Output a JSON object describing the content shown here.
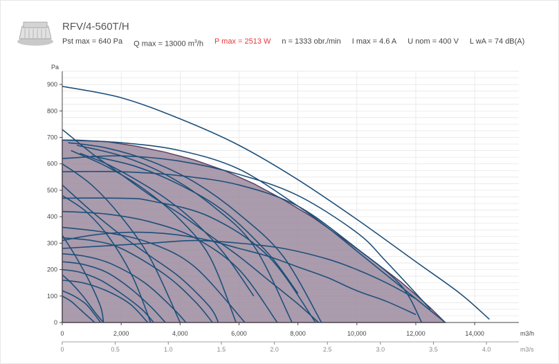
{
  "product": {
    "title": "RFV/4-560T/H",
    "logo_icon": "roof-fan-icon"
  },
  "specs": {
    "pst_max": "Pst max = 640 Pa",
    "q_max_prefix": "Q max = 13000 m",
    "q_max_sup": "3",
    "q_max_suffix": "/h",
    "p_max": "P max = 2513 W",
    "n": "n = 1333 obr./min",
    "i_max": "I max = 4.6 A",
    "u_nom": "U nom = 400 V",
    "lwa": "L wA = 74 dB(A)",
    "p_max_color": "#e8373c"
  },
  "chart_data": {
    "type": "line",
    "ylabel": "Pa",
    "xlabel_primary": "m3/h",
    "xlabel_secondary": "m3/s",
    "xlim": [
      0,
      15500
    ],
    "ylim": [
      0,
      950
    ],
    "y_ticks": [
      0,
      100,
      200,
      300,
      400,
      500,
      600,
      700,
      800,
      900
    ],
    "x_ticks": [
      0,
      2000,
      4000,
      6000,
      8000,
      10000,
      12000,
      14000
    ],
    "x_tick_labels": [
      "0",
      "2,000",
      "4,000",
      "6,000",
      "8,000",
      "10,000",
      "12,000",
      "14,000"
    ],
    "x2_ticks": [
      0,
      0.5,
      1.0,
      1.5,
      2.0,
      2.5,
      3.0,
      3.5,
      4.0
    ],
    "x2_tick_labels": [
      "0",
      "0.5",
      "1.0",
      "1.5",
      "2.0",
      "2.5",
      "3.0",
      "3.5",
      "4.0"
    ],
    "grid": true,
    "area_color": "#9b8a9f",
    "line_color": "#1d4f79",
    "area_edge_color": "#5e3f62",
    "working_area": {
      "x": [
        0,
        500,
        1500,
        2500,
        3500,
        4500,
        5500,
        6500,
        7500,
        8500,
        9500,
        10500,
        11500,
        12000,
        12500,
        13000
      ],
      "y": [
        690,
        690,
        684,
        667,
        644,
        614,
        575,
        525,
        465,
        398,
        320,
        238,
        153,
        105,
        55,
        0
      ]
    },
    "series": [
      {
        "x": [
          0,
          2000,
          4000,
          6000,
          8000,
          10000,
          12000,
          13500,
          14500
        ],
        "y": [
          893,
          850,
          770,
          670,
          540,
          390,
          230,
          110,
          12
        ]
      },
      {
        "x": [
          0,
          2000,
          4000,
          6000,
          8000,
          9000,
          10000,
          11000,
          12000,
          13000
        ],
        "y": [
          690,
          680,
          650,
          580,
          440,
          360,
          270,
          180,
          90,
          0
        ]
      },
      {
        "x": [
          0,
          2000,
          4000,
          6000,
          8000,
          10000,
          11500,
          12200
        ],
        "y": [
          570,
          570,
          555,
          520,
          440,
          280,
          140,
          0
        ]
      },
      {
        "x": [
          0,
          1000,
          2000,
          3000,
          4000,
          5000,
          6000,
          7000,
          8000,
          8700
        ],
        "y": [
          730,
          640,
          560,
          480,
          410,
          330,
          250,
          160,
          70,
          0
        ]
      },
      {
        "x": [
          0,
          2000,
          3000,
          5000,
          7000,
          8600
        ],
        "y": [
          470,
          470,
          460,
          400,
          250,
          0
        ]
      },
      {
        "x": [
          0,
          1500,
          3000,
          4500,
          6000,
          7300
        ],
        "y": [
          420,
          410,
          380,
          320,
          200,
          0
        ]
      },
      {
        "x": [
          0,
          1500,
          3000,
          4500,
          6200
        ],
        "y": [
          360,
          340,
          300,
          210,
          0
        ]
      },
      {
        "x": [
          0,
          1000,
          2000,
          3000,
          4000,
          5000,
          5300
        ],
        "y": [
          520,
          420,
          330,
          250,
          170,
          60,
          0
        ]
      },
      {
        "x": [
          0,
          1000,
          2000,
          3500,
          4500,
          5100
        ],
        "y": [
          320,
          310,
          280,
          180,
          80,
          0
        ]
      },
      {
        "x": [
          0,
          800,
          1700,
          2800,
          3700,
          4200
        ],
        "y": [
          260,
          250,
          220,
          150,
          60,
          0
        ]
      },
      {
        "x": [
          0,
          700,
          1500,
          2300,
          3000,
          3500
        ],
        "y": [
          230,
          220,
          190,
          130,
          60,
          0
        ]
      },
      {
        "x": [
          0,
          600,
          1300,
          2000,
          2700,
          3100
        ],
        "y": [
          200,
          190,
          160,
          110,
          50,
          0
        ]
      },
      {
        "x": [
          0,
          700,
          1500,
          2300,
          2900
        ],
        "y": [
          160,
          150,
          120,
          70,
          0
        ]
      },
      {
        "x": [
          0,
          400,
          900,
          1300,
          1400
        ],
        "y": [
          330,
          260,
          160,
          60,
          0
        ]
      },
      {
        "x": [
          0,
          300,
          700,
          1100,
          1400
        ],
        "y": [
          180,
          150,
          100,
          40,
          0
        ]
      },
      {
        "x": [
          0,
          400,
          800,
          1100,
          1300
        ],
        "y": [
          120,
          100,
          70,
          30,
          0
        ]
      },
      {
        "x": [
          0,
          300,
          600,
          900,
          1100
        ],
        "y": [
          100,
          80,
          50,
          20,
          0
        ]
      },
      {
        "x": [
          200,
          1500,
          3000,
          4500,
          6000,
          7500,
          8800
        ],
        "y": [
          680,
          660,
          610,
          530,
          410,
          250,
          0
        ]
      },
      {
        "x": [
          500,
          2000,
          3500,
          5000,
          6500,
          7800
        ],
        "y": [
          670,
          630,
          560,
          450,
          290,
          0
        ]
      },
      {
        "x": [
          300,
          1500,
          2700,
          3900,
          5000,
          5900
        ],
        "y": [
          650,
          590,
          510,
          400,
          250,
          0
        ]
      },
      {
        "x": [
          0,
          1000,
          2000,
          3000,
          4000
        ],
        "y": [
          600,
          520,
          400,
          240,
          0
        ]
      },
      {
        "x": [
          0,
          800,
          1600,
          2400,
          3000
        ],
        "y": [
          480,
          420,
          320,
          170,
          0
        ]
      },
      {
        "x": [
          0,
          1500,
          3000,
          4500,
          6000,
          7500,
          9000,
          10000,
          11000,
          12000
        ],
        "y": [
          280,
          290,
          300,
          310,
          300,
          280,
          240,
          200,
          150,
          90
        ]
      },
      {
        "x": [
          0,
          2000,
          4000,
          6000,
          8000,
          10000,
          11000,
          12500
        ],
        "y": [
          620,
          630,
          610,
          560,
          480,
          340,
          230,
          50
        ]
      },
      {
        "x": [
          0,
          1000,
          2000,
          3000,
          4000,
          5000,
          6000,
          7000,
          8000,
          9000,
          10000,
          11000,
          12000
        ],
        "y": [
          310,
          330,
          340,
          340,
          330,
          310,
          280,
          250,
          210,
          170,
          120,
          80,
          30
        ]
      },
      {
        "x": [
          600,
          1500,
          2500,
          3500,
          4500,
          5500,
          6500
        ],
        "y": [
          640,
          600,
          540,
          470,
          380,
          260,
          100
        ]
      },
      {
        "x": [
          1000,
          2500,
          4000,
          5500,
          7000,
          8000
        ],
        "y": [
          630,
          590,
          520,
          420,
          260,
          110
        ]
      }
    ]
  }
}
